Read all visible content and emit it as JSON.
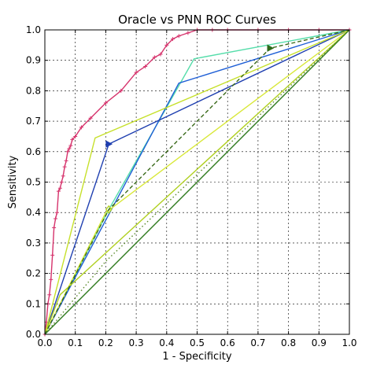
{
  "chart_data": {
    "type": "line",
    "title": "Oracle vs PNN ROC Curves",
    "xlabel": "1 - Specificity",
    "ylabel": "Sensitivity",
    "xlim": [
      0,
      1
    ],
    "ylim": [
      0,
      1
    ],
    "xticks": [
      "0.0",
      "0.1",
      "0.2",
      "0.3",
      "0.4",
      "0.5",
      "0.6",
      "0.7",
      "0.8",
      "0.9",
      "1.0"
    ],
    "yticks": [
      "0.0",
      "0.1",
      "0.2",
      "0.3",
      "0.4",
      "0.5",
      "0.6",
      "0.7",
      "0.8",
      "0.9",
      "1.0"
    ],
    "grid": true,
    "series": [
      {
        "color": "#d6336c",
        "style": "solid",
        "marker": "plus",
        "x": [
          0.0,
          0.005,
          0.01,
          0.015,
          0.02,
          0.025,
          0.03,
          0.035,
          0.04,
          0.045,
          0.05,
          0.055,
          0.06,
          0.065,
          0.07,
          0.075,
          0.08,
          0.085,
          0.09,
          0.1,
          0.12,
          0.15,
          0.2,
          0.25,
          0.3,
          0.33,
          0.36,
          0.38,
          0.4,
          0.42,
          0.44,
          0.47,
          0.5,
          0.55,
          0.6,
          0.7,
          0.8,
          0.9,
          1.0
        ],
        "y": [
          0.0,
          0.04,
          0.1,
          0.13,
          0.18,
          0.26,
          0.35,
          0.38,
          0.4,
          0.47,
          0.48,
          0.5,
          0.52,
          0.55,
          0.57,
          0.6,
          0.61,
          0.62,
          0.64,
          0.65,
          0.68,
          0.71,
          0.76,
          0.8,
          0.86,
          0.88,
          0.91,
          0.92,
          0.95,
          0.97,
          0.98,
          0.99,
          1.0,
          1.0,
          1.0,
          1.0,
          1.0,
          1.0,
          1.0
        ]
      },
      {
        "color": "#55ddaa",
        "style": "solid",
        "marker": "none",
        "x": [
          0.0,
          0.21,
          0.49,
          1.0
        ],
        "y": [
          0.0,
          0.41,
          0.905,
          1.0
        ]
      },
      {
        "color": "#1f5fd6",
        "style": "solid",
        "marker": "none",
        "x": [
          0.0,
          0.44,
          1.0
        ],
        "y": [
          0.0,
          0.825,
          1.0
        ]
      },
      {
        "color": "#1f3fb0",
        "style": "solid",
        "marker": "triangle-right",
        "x": [
          0.0,
          0.21,
          1.0
        ],
        "y": [
          0.0,
          0.625,
          1.0
        ]
      },
      {
        "color": "#c6e02a",
        "style": "solid",
        "marker": "none",
        "x": [
          0.0,
          0.165,
          1.0
        ],
        "y": [
          0.0,
          0.645,
          1.0
        ]
      },
      {
        "color": "#b0d020",
        "style": "solid",
        "marker": "none",
        "x": [
          0.0,
          0.05,
          1.0
        ],
        "y": [
          0.0,
          0.13,
          1.0
        ]
      },
      {
        "color": "#d9e83a",
        "style": "solid",
        "marker": "none",
        "x": [
          0.0,
          0.2,
          1.0
        ],
        "y": [
          0.0,
          0.4,
          1.0
        ]
      },
      {
        "color": "#2f7a1e",
        "style": "solid",
        "marker": "none",
        "x": [
          0.0,
          1.0
        ],
        "y": [
          0.0,
          1.0
        ]
      },
      {
        "color": "#5a8a2a",
        "style": "dotted",
        "marker": "none",
        "x": [
          0.0,
          0.2,
          1.0
        ],
        "y": [
          0.0,
          0.24,
          1.0
        ]
      },
      {
        "color": "#3a6a1a",
        "style": "dashed",
        "marker": "none",
        "x": [
          0.0,
          0.21,
          0.74,
          1.0
        ],
        "y": [
          0.0,
          0.41,
          0.94,
          1.0
        ]
      }
    ],
    "markers": [
      {
        "x": 0.21,
        "y": 0.625,
        "shape": "triangle-right",
        "color": "#1f3fb0"
      },
      {
        "x": 0.21,
        "y": 0.41,
        "shape": "diamond",
        "color": "#b0d020"
      },
      {
        "x": 0.74,
        "y": 0.94,
        "shape": "triangle-right",
        "color": "#2f6a1a"
      }
    ]
  }
}
